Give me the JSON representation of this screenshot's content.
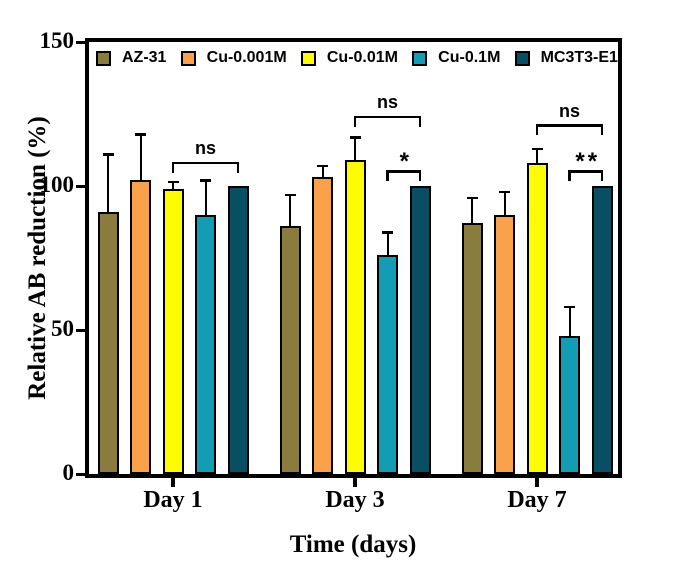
{
  "figure": {
    "background": "#ffffff",
    "axis_color": "#000000"
  },
  "chart_data": {
    "type": "bar",
    "grouped": true,
    "title": "",
    "xlabel": "Time (days)",
    "ylabel": "Relative AB reduction (%)",
    "ylim": [
      0,
      150
    ],
    "yticks": [
      0,
      50,
      100,
      150
    ],
    "grid": false,
    "legend_position": "top-inside",
    "error_bars": "upper",
    "categories": [
      "Day 1",
      "Day 3",
      "Day 7"
    ],
    "series": [
      {
        "name": "AZ-31",
        "color": "#8a7b3e",
        "values": [
          91,
          86,
          87
        ],
        "errors": [
          20,
          11,
          9
        ]
      },
      {
        "name": "Cu-0.001M",
        "color": "#f9a14b",
        "values": [
          102,
          103,
          90
        ],
        "errors": [
          16,
          4,
          8
        ]
      },
      {
        "name": "Cu-0.01M",
        "color": "#fdfd00",
        "values": [
          99,
          109,
          108
        ],
        "errors": [
          2.5,
          8,
          5
        ]
      },
      {
        "name": "Cu-0.1M",
        "color": "#149cb4",
        "values": [
          90,
          76,
          48
        ],
        "errors": [
          12,
          8,
          10
        ]
      },
      {
        "name": "MC3T3-E1",
        "color": "#084f63",
        "values": [
          100,
          100,
          100
        ],
        "errors": [
          0,
          0,
          0
        ]
      }
    ],
    "significance_brackets": [
      {
        "category": "Day 1",
        "group_index": 0,
        "from_series": 2,
        "to_series": 4,
        "label": "ns",
        "height": 108
      },
      {
        "category": "Day 3",
        "group_index": 1,
        "from_series": 2,
        "to_series": 4,
        "label": "ns",
        "height": 124
      },
      {
        "category": "Day 3",
        "group_index": 1,
        "from_series": 3,
        "to_series": 4,
        "label": "*",
        "height": 105
      },
      {
        "category": "Day 7",
        "group_index": 2,
        "from_series": 2,
        "to_series": 4,
        "label": "ns",
        "height": 121
      },
      {
        "category": "Day 7",
        "group_index": 2,
        "from_series": 3,
        "to_series": 4,
        "label": "**",
        "height": 105
      }
    ]
  }
}
